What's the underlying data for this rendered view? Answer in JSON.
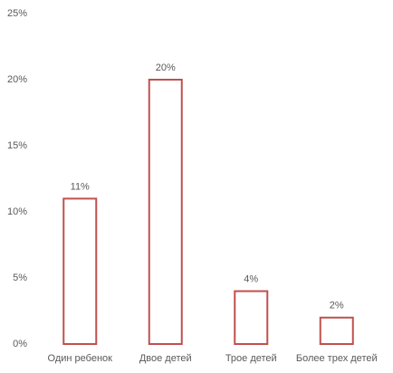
{
  "chart_data": {
    "type": "bar",
    "categories": [
      "Один ребенок",
      "Двое детей",
      "Трое детей",
      "Более трех детей"
    ],
    "values": [
      11,
      20,
      4,
      2
    ],
    "value_labels": [
      "11%",
      "20%",
      "4%",
      "2%"
    ],
    "color": "#c0504d",
    "ylim": [
      0,
      25
    ],
    "yticks": [
      {
        "value": 0,
        "label": "0%"
      },
      {
        "value": 5,
        "label": "5%"
      },
      {
        "value": 10,
        "label": "10%"
      },
      {
        "value": 15,
        "label": "15%"
      },
      {
        "value": 20,
        "label": "20%"
      },
      {
        "value": 25,
        "label": "25%"
      }
    ],
    "grid": false
  }
}
